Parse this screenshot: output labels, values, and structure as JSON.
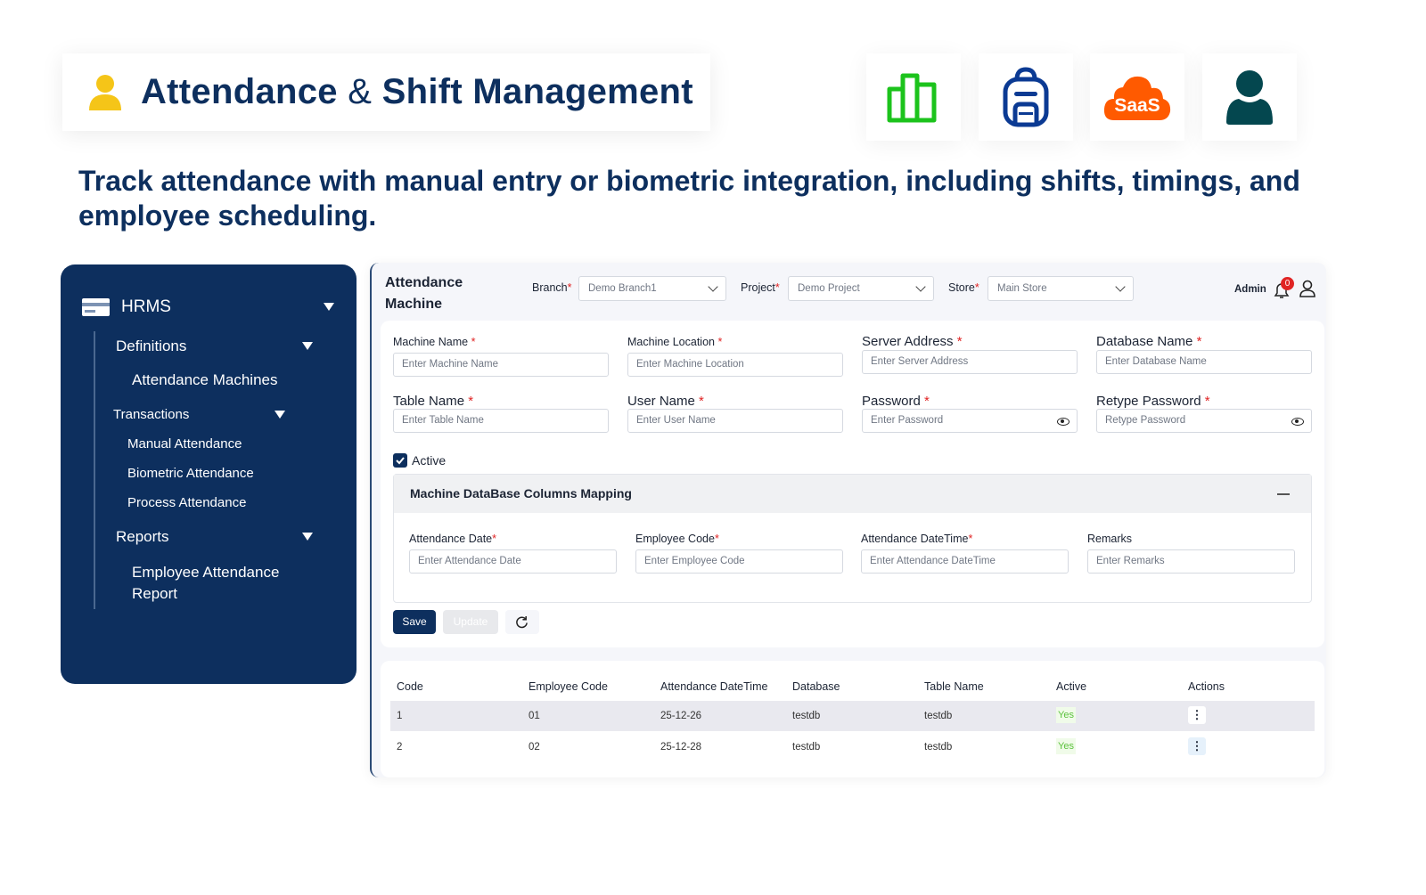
{
  "header": {
    "title_part1": "Attendance",
    "title_amp": "&",
    "title_part2": "Shift Management",
    "subtitle": "Track attendance with manual entry or biometric integration, including shifts, timings, and employee scheduling."
  },
  "feature_icons": [
    "bar-chart-icon",
    "backpack-icon",
    "saas-cloud-icon",
    "user-icon"
  ],
  "saas_label": "SaaS",
  "colors": {
    "navy": "#0d2f5e",
    "green": "#1cc31c",
    "blue": "#0b3a93",
    "orange": "#ff5a00",
    "teal": "#04474f",
    "yellow": "#f5c518"
  },
  "sidebar": {
    "module": "HRMS",
    "groups": [
      {
        "label": "Definitions",
        "items": [
          "Attendance Machines"
        ]
      },
      {
        "label": "Transactions",
        "items": [
          "Manual Attendance",
          "Biometric Attendance",
          "Process Attendance"
        ]
      },
      {
        "label": "Reports",
        "items": [
          "Employee Attendance Report"
        ]
      }
    ]
  },
  "topbar": {
    "page_title_1": "Attendance",
    "page_title_2": "Machine",
    "branch_label": "Branch",
    "branch_value": "Demo Branch1",
    "project_label": "Project",
    "project_value": "Demo Project",
    "store_label": "Store",
    "store_value": "Main Store",
    "user": "Admin",
    "notifications": "0"
  },
  "form": {
    "fields": [
      {
        "label": "Machine Name",
        "placeholder": "Enter Machine Name"
      },
      {
        "label": "Machine Location",
        "placeholder": "Enter Machine Location"
      },
      {
        "label": "Server Address",
        "placeholder": "Enter Server Address"
      },
      {
        "label": "Database Name",
        "placeholder": "Enter Database Name"
      },
      {
        "label": "Table Name",
        "placeholder": "Enter Table Name"
      },
      {
        "label": "User Name",
        "placeholder": "Enter User Name"
      },
      {
        "label": "Password",
        "placeholder": "Enter Password"
      },
      {
        "label": "Retype Password",
        "placeholder": "Retype Password"
      }
    ],
    "active_label": "Active",
    "active_checked": true,
    "mapping_title": "Machine DataBase Columns Mapping",
    "mapping_fields": [
      {
        "label": "Attendance Date",
        "placeholder": "Enter Attendance Date"
      },
      {
        "label": "Employee Code",
        "placeholder": "Enter Employee Code"
      },
      {
        "label": "Attendance DateTime",
        "placeholder": "Enter Attendance DateTime"
      },
      {
        "label": "Remarks",
        "placeholder": "Enter Remarks"
      }
    ],
    "save": "Save",
    "update": "Update"
  },
  "table": {
    "columns": [
      "Code",
      "Employee Code",
      "Attendance DateTime",
      "Database",
      "Table Name",
      "Active",
      "Actions"
    ],
    "rows": [
      [
        "1",
        "01",
        "25-12-26",
        "testdb",
        "testdb",
        "Yes"
      ],
      [
        "2",
        "02",
        "25-12-28",
        "testdb",
        "testdb",
        "Yes"
      ]
    ]
  }
}
